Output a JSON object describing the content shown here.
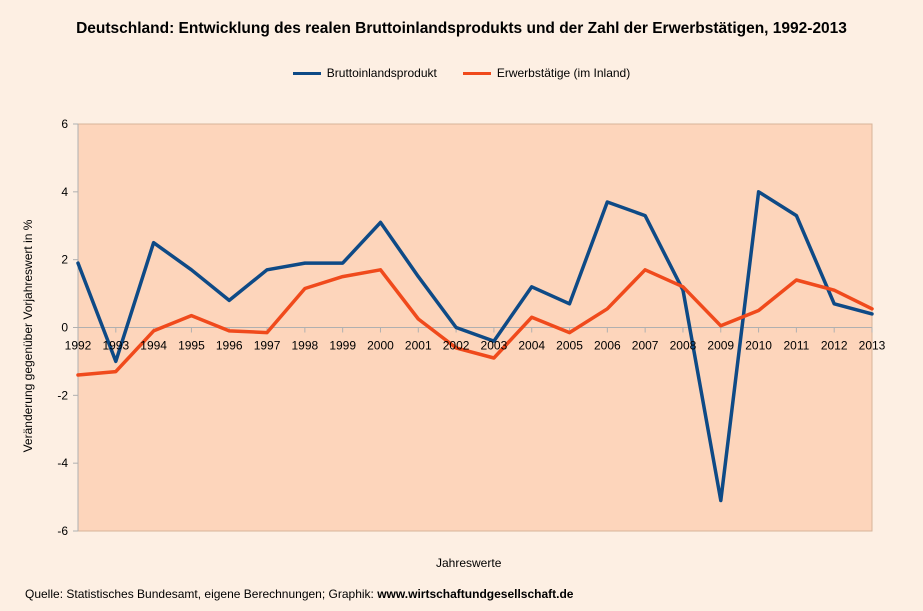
{
  "chart_data": {
    "type": "line",
    "title": "Deutschland: Entwicklung des realen Bruttoinlandsprodukts und der Zahl der Erwerbstätigen, 1992-2013",
    "xlabel": "Jahreswerte",
    "ylabel": "Veränderung gegenüber Vorjahreswert in %",
    "ylim": [
      -6,
      6
    ],
    "yticks": [
      "6",
      "4",
      "2",
      "0",
      "-2",
      "-4",
      "-6"
    ],
    "grid": false,
    "legend_position": "top-center",
    "plot_background": "#fdd5bb",
    "categories": [
      "1992",
      "1993",
      "1994",
      "1995",
      "1996",
      "1997",
      "1998",
      "1999",
      "2000",
      "2001",
      "2002",
      "2003",
      "2004",
      "2005",
      "2006",
      "2007",
      "2008",
      "2009",
      "2010",
      "2011",
      "2012",
      "2013"
    ],
    "series": [
      {
        "name": "Bruttoinlandsprodukt",
        "color": "#0e4a86",
        "values": [
          1.9,
          -1.0,
          2.5,
          1.7,
          0.8,
          1.7,
          1.9,
          1.9,
          3.1,
          1.5,
          0.0,
          -0.4,
          1.2,
          0.7,
          3.7,
          3.3,
          1.1,
          -5.1,
          4.0,
          3.3,
          0.7,
          0.4
        ]
      },
      {
        "name": "Erwerbstätige (im Inland)",
        "color": "#f04a1c",
        "values": [
          -1.4,
          -1.3,
          -0.1,
          0.35,
          -0.1,
          -0.15,
          1.15,
          1.5,
          1.7,
          0.25,
          -0.6,
          -0.9,
          0.3,
          -0.15,
          0.55,
          1.7,
          1.2,
          0.05,
          0.5,
          1.4,
          1.1,
          0.55
        ]
      }
    ]
  },
  "source": {
    "prefix": "Quelle: Statistisches Bundesamt, eigene Berechnungen; Graphik: ",
    "site": "www.wirtschaftundgesellschaft.de"
  }
}
